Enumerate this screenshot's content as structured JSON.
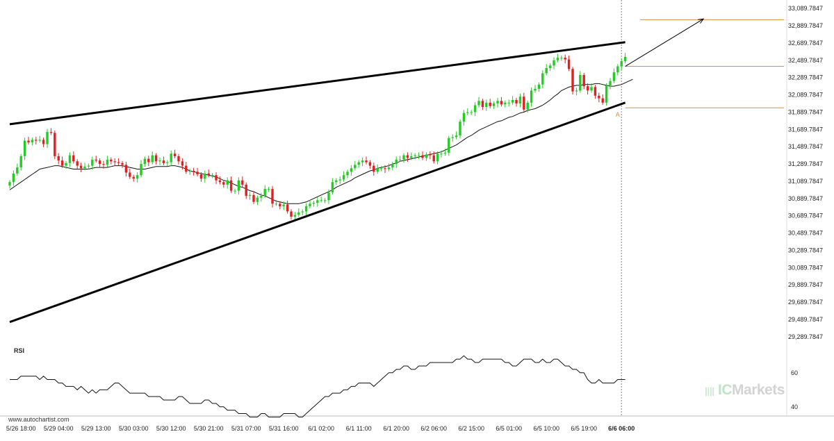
{
  "chart_data": [
    {
      "type": "candlestick",
      "title": "",
      "xlabel": "",
      "ylabel": "",
      "ylim": [
        29200,
        33140
      ],
      "y_ticks": [
        "33,089.7847",
        "32,889.7847",
        "32,689.7847",
        "32,489.7847",
        "32,289.7847",
        "32,089.7847",
        "31,889.7847",
        "31,689.7847",
        "31,489.7847",
        "31,289.7847",
        "31,089.7847",
        "30,889.7847",
        "30,689.7847",
        "30,489.7847",
        "30,289.7847",
        "30,089.7847",
        "29,889.7847",
        "29,689.7847",
        "29,489.7847",
        "29,289.7847"
      ],
      "y_tick_values": [
        33089.7847,
        32889.7847,
        32689.7847,
        32489.7847,
        32289.7847,
        32089.7847,
        31889.7847,
        31689.7847,
        31489.7847,
        31289.7847,
        31089.7847,
        30889.7847,
        30689.7847,
        30489.7847,
        30289.7847,
        30089.7847,
        29889.7847,
        29689.7847,
        29489.7847,
        29289.7847
      ],
      "x_ticks": [
        "5/26 18:00",
        "5/29 04:00",
        "5/29 13:00",
        "5/30 03:00",
        "5/30 12:00",
        "5/30 21:00",
        "5/31 07:00",
        "5/31 16:00",
        "6/1 02:00",
        "6/1 11:00",
        "6/1 20:00",
        "6/2 06:00",
        "6/2 15:00",
        "6/5 01:00",
        "6/5 10:00",
        "6/5 19:00",
        "6/6 06:00"
      ],
      "x_tick_bar_index": [
        3,
        13,
        23,
        33,
        43,
        53,
        63,
        73,
        83,
        93,
        103,
        113,
        123,
        133,
        143,
        153,
        163
      ],
      "colors": {
        "up": "#22cc22",
        "down": "#e02020",
        "levels": "#e08a3c"
      },
      "close": [
        31080,
        31180,
        31250,
        31380,
        31560,
        31540,
        31570,
        31560,
        31570,
        31520,
        31660,
        31650,
        31380,
        31330,
        31270,
        31300,
        31390,
        31320,
        31270,
        31240,
        31260,
        31270,
        31340,
        31330,
        31290,
        31280,
        31340,
        31320,
        31310,
        31300,
        31280,
        31190,
        31140,
        31120,
        31160,
        31290,
        31350,
        31310,
        31390,
        31320,
        31330,
        31300,
        31310,
        31410,
        31380,
        31320,
        31270,
        31200,
        31210,
        31200,
        31170,
        31120,
        31180,
        31160,
        31160,
        31100,
        31080,
        31050,
        31100,
        30980,
        30980,
        31100,
        31050,
        30920,
        30930,
        30850,
        30900,
        30920,
        31000,
        31000,
        30830,
        30830,
        30800,
        30820,
        30740,
        30680,
        30700,
        30730,
        30740,
        30800,
        30830,
        30840,
        30870,
        30870,
        30870,
        30960,
        31080,
        31100,
        31110,
        31160,
        31200,
        31240,
        31280,
        31310,
        31330,
        31310,
        31270,
        31200,
        31240,
        31240,
        31230,
        31250,
        31290,
        31340,
        31340,
        31390,
        31360,
        31380,
        31390,
        31390,
        31360,
        31400,
        31390,
        31320,
        31410,
        31410,
        31420,
        31590,
        31600,
        31620,
        31780,
        31880,
        31890,
        31890,
        31970,
        32020,
        31950,
        32000,
        31960,
        31990,
        32020,
        31980,
        32000,
        32000,
        32030,
        31990,
        32070,
        31920,
        32000,
        32140,
        32160,
        32210,
        32340,
        32400,
        32430,
        32490,
        32520,
        32520,
        32500,
        32390,
        32130,
        32140,
        32320,
        32190,
        32140,
        32180,
        32080,
        32050,
        32000,
        32200,
        32250,
        32350,
        32420,
        32480,
        32530
      ],
      "moving_average": [
        30990,
        31020,
        31050,
        31080,
        31110,
        31140,
        31170,
        31200,
        31230,
        31240,
        31250,
        31260,
        31270,
        31270,
        31260,
        31250,
        31240,
        31230,
        31230,
        31230,
        31230,
        31230,
        31240,
        31250,
        31250,
        31250,
        31250,
        31260,
        31270,
        31270,
        31270,
        31260,
        31250,
        31240,
        31230,
        31230,
        31230,
        31240,
        31250,
        31260,
        31260,
        31260,
        31260,
        31270,
        31270,
        31260,
        31250,
        31230,
        31210,
        31200,
        31190,
        31180,
        31170,
        31160,
        31150,
        31140,
        31120,
        31100,
        31090,
        31070,
        31050,
        31030,
        31020,
        31000,
        30980,
        30970,
        30950,
        30930,
        30920,
        30900,
        30880,
        30860,
        30850,
        30840,
        30830,
        30830,
        30830,
        30830,
        30840,
        30850,
        30870,
        30890,
        30910,
        30930,
        30950,
        30970,
        30990,
        31020,
        31040,
        31060,
        31080,
        31100,
        31130,
        31150,
        31170,
        31190,
        31210,
        31220,
        31240,
        31250,
        31260,
        31270,
        31290,
        31300,
        31320,
        31330,
        31340,
        31350,
        31360,
        31370,
        31380,
        31390,
        31400,
        31410,
        31420,
        31430,
        31450,
        31470,
        31490,
        31510,
        31540,
        31570,
        31600,
        31620,
        31650,
        31680,
        31700,
        31720,
        31740,
        31760,
        31780,
        31790,
        31810,
        31830,
        31840,
        31860,
        31880,
        31890,
        31910,
        31920,
        31930,
        31950,
        31970,
        32000,
        32030,
        32070,
        32100,
        32140,
        32160,
        32180,
        32190,
        32200,
        32200,
        32210,
        32210,
        32210,
        32220,
        32220,
        32210,
        32200,
        32190,
        32190,
        32200,
        32210,
        32230,
        32250,
        32270
      ],
      "support_line": {
        "from": [
          0,
          29460
        ],
        "to": [
          164,
          32000
        ]
      },
      "resistance_line": {
        "from": [
          0,
          31750
        ],
        "to": [
          164,
          32700
        ]
      },
      "levels": [
        32960,
        32420,
        31940
      ],
      "projection": {
        "from": [
          164,
          32420
        ],
        "to": [
          183,
          32970
        ]
      },
      "marker_label": "A",
      "marker_bar": 162,
      "marker_value": 31870
    },
    {
      "type": "line",
      "title": "RSI",
      "ylim": [
        35,
        75
      ],
      "y_ticks": [
        "60",
        "40"
      ],
      "y_tick_values": [
        60,
        40
      ],
      "values": [
        56,
        56,
        56,
        58,
        58,
        58,
        58,
        58,
        56,
        58,
        56,
        56,
        56,
        54,
        54,
        52,
        52,
        52,
        50,
        52,
        50,
        48,
        50,
        48,
        50,
        50,
        50,
        52,
        54,
        54,
        52,
        50,
        48,
        48,
        48,
        48,
        48,
        46,
        46,
        46,
        46,
        44,
        44,
        44,
        44,
        46,
        46,
        44,
        42,
        42,
        42,
        42,
        44,
        44,
        42,
        42,
        40,
        40,
        38,
        38,
        38,
        36,
        36,
        36,
        34,
        34,
        34,
        36,
        36,
        34,
        34,
        34,
        34,
        36,
        36,
        36,
        36,
        34,
        34,
        36,
        38,
        40,
        42,
        44,
        46,
        46,
        48,
        48,
        48,
        50,
        50,
        52,
        52,
        54,
        54,
        54,
        54,
        52,
        54,
        56,
        58,
        60,
        60,
        62,
        62,
        64,
        64,
        62,
        62,
        64,
        64,
        64,
        66,
        66,
        66,
        66,
        66,
        66,
        66,
        68,
        68,
        70,
        68,
        68,
        66,
        66,
        68,
        68,
        68,
        68,
        68,
        68,
        66,
        66,
        64,
        64,
        66,
        68,
        68,
        68,
        66,
        66,
        68,
        66,
        66,
        68,
        68,
        66,
        64,
        64,
        62,
        62,
        60,
        60,
        56,
        54,
        54,
        56,
        54,
        54,
        54,
        54,
        56,
        56,
        56
      ]
    }
  ],
  "source_text": "www.autochartist.com",
  "watermark": {
    "ic": "IC",
    "brand": "Markets",
    "mark": "||||"
  }
}
